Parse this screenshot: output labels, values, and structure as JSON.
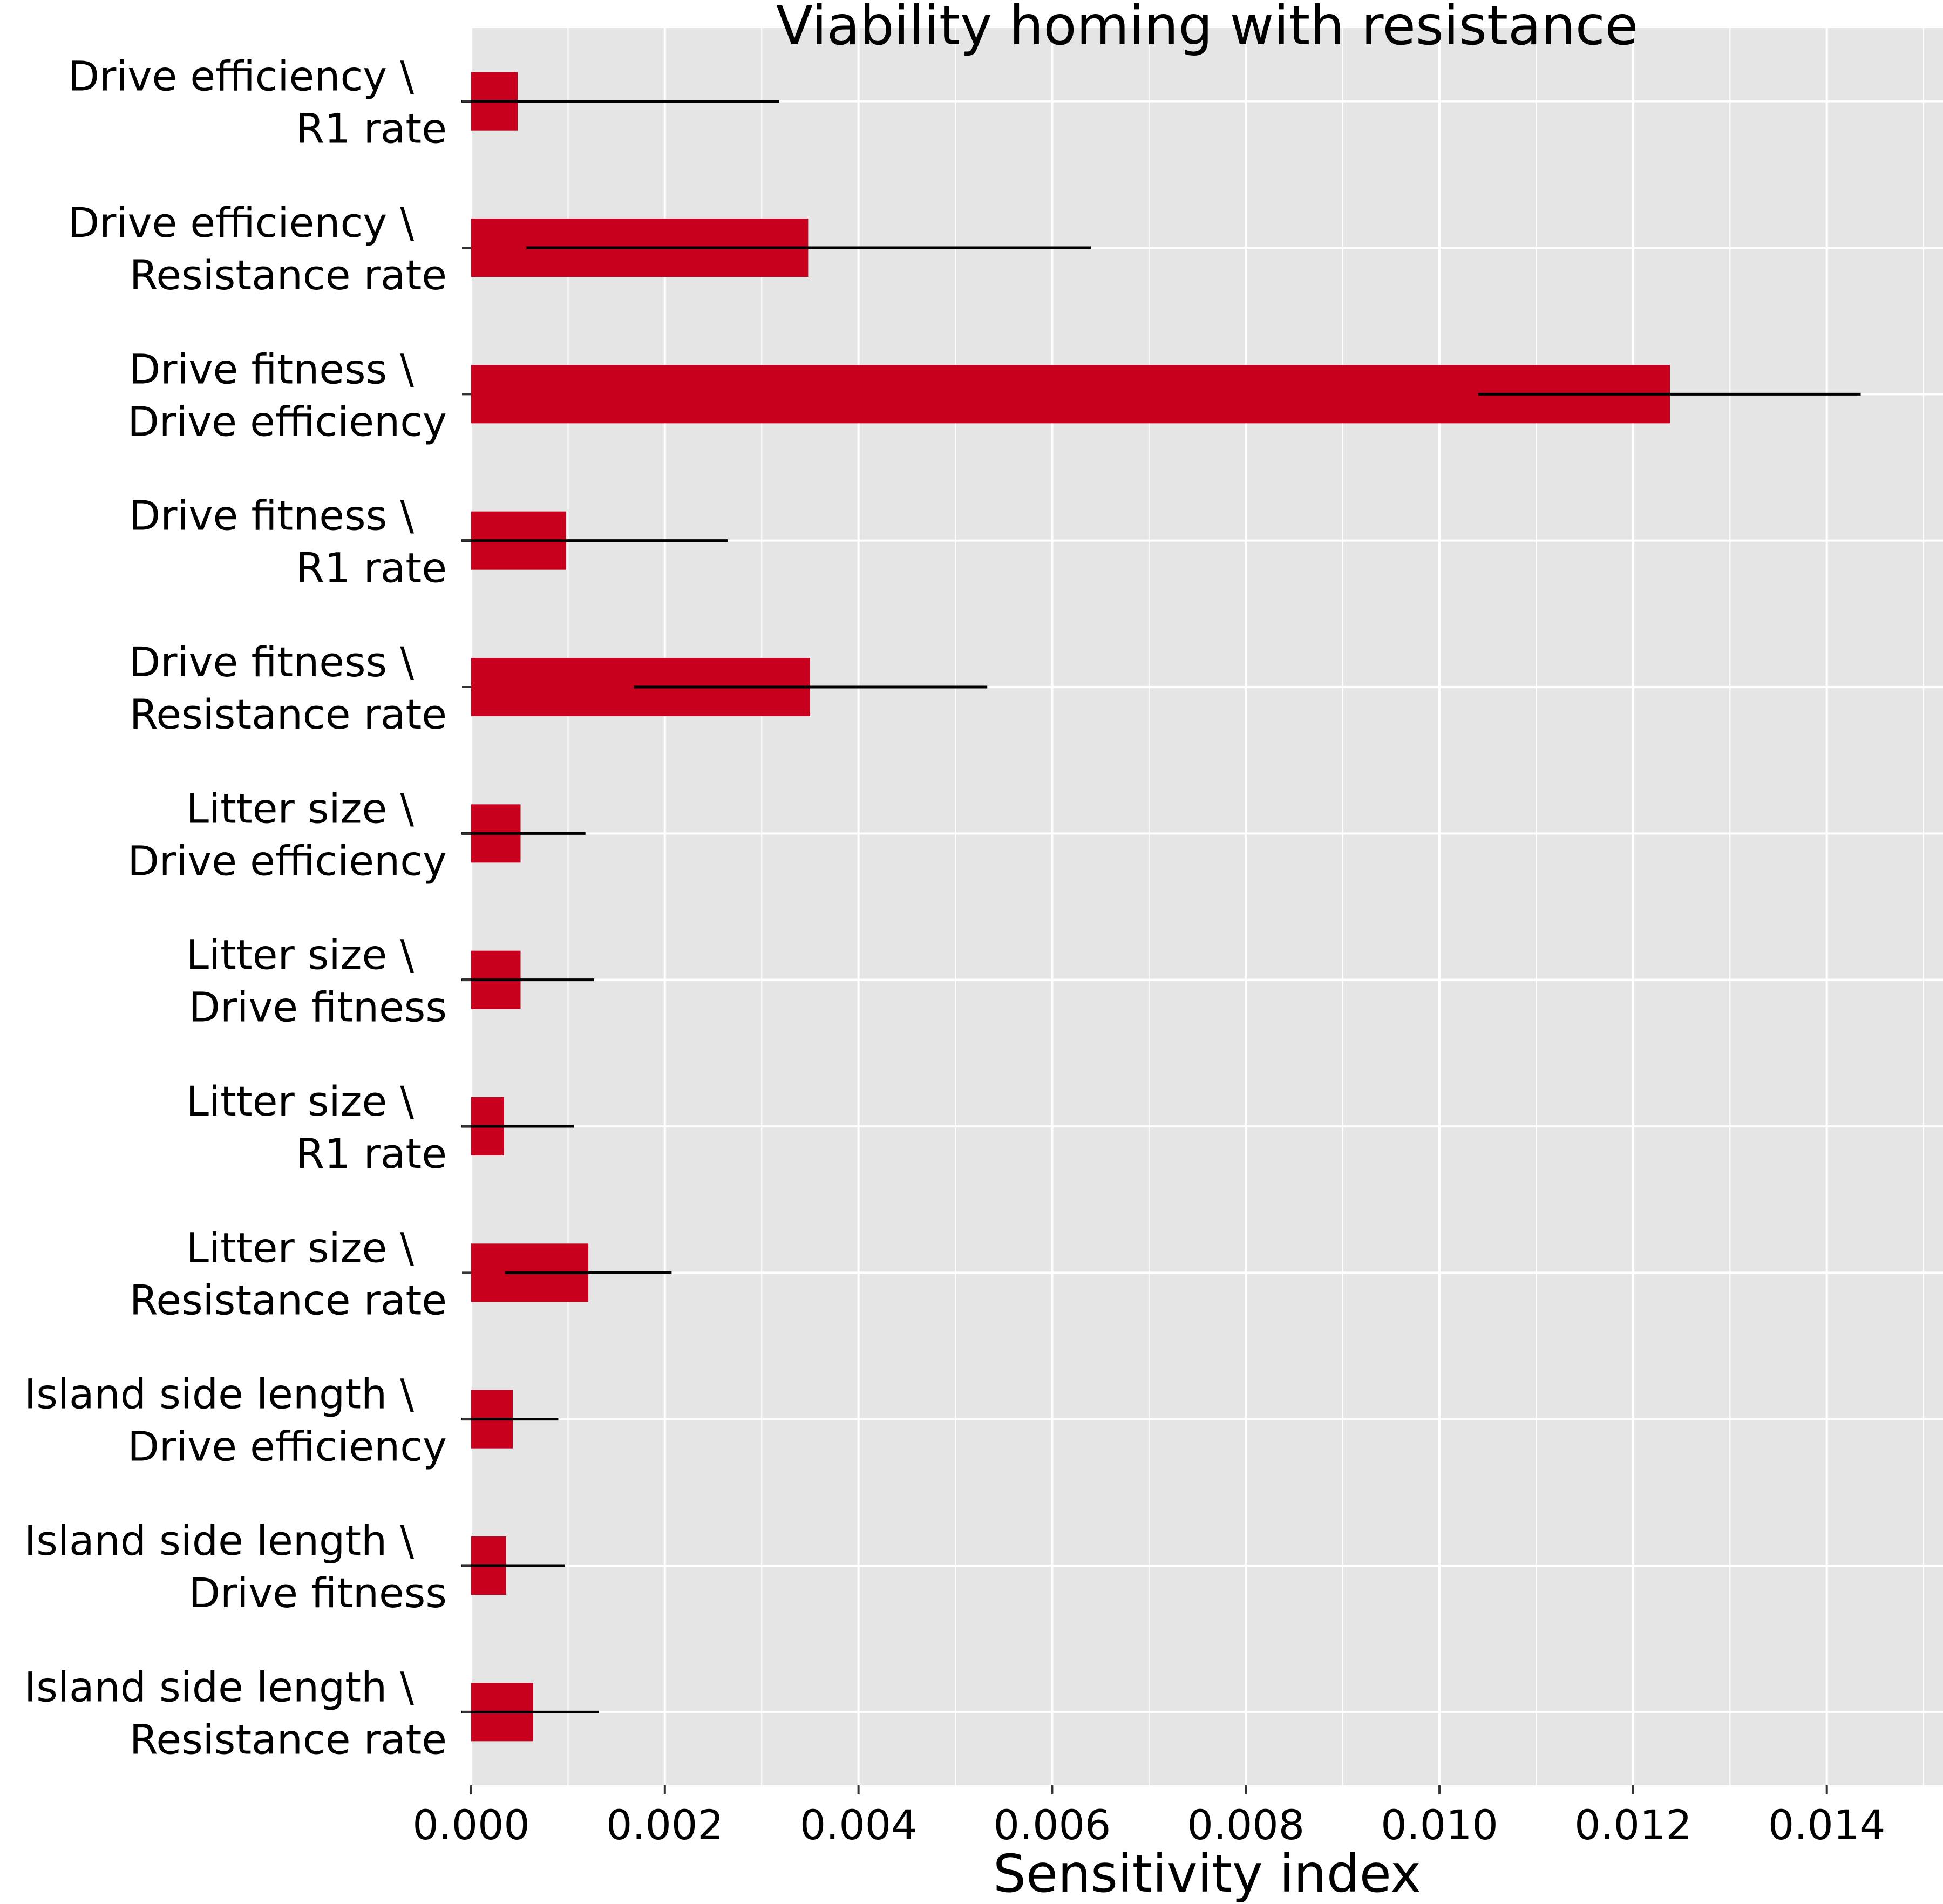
{
  "chart_data": {
    "type": "bar",
    "orientation": "horizontal",
    "title": "Viability homing with resistance",
    "xlabel": "Sensitivity index",
    "ylabel": "",
    "xlim": [
      0,
      0.0152
    ],
    "xticks": [
      0,
      0.002,
      0.004,
      0.006,
      0.008,
      0.01,
      0.012,
      0.014
    ],
    "xtick_labels": [
      "0.000",
      "0.002",
      "0.004",
      "0.006",
      "0.008",
      "0.010",
      "0.012",
      "0.014"
    ],
    "grid": true,
    "colors": {
      "bar": "#c8001e",
      "panel": "#e5e5e5",
      "gridline": "#ffffff",
      "errorbar": "#000000"
    },
    "categories": [
      [
        "Drive efficiency \\",
        "R1 rate"
      ],
      [
        "Drive efficiency \\",
        "Resistance rate"
      ],
      [
        "Drive fitness \\",
        "Drive efficiency"
      ],
      [
        "Drive fitness \\",
        "R1 rate"
      ],
      [
        "Drive fitness \\",
        "Resistance rate"
      ],
      [
        "Litter size \\",
        "Drive efficiency"
      ],
      [
        "Litter size \\",
        "Drive fitness"
      ],
      [
        "Litter size \\",
        "R1 rate"
      ],
      [
        "Litter size \\",
        "Resistance rate"
      ],
      [
        "Island side length \\",
        "Drive efficiency"
      ],
      [
        "Island side length \\",
        "Drive fitness"
      ],
      [
        "Island side length \\",
        "Resistance rate"
      ]
    ],
    "values": [
      0.00048,
      0.00348,
      0.01238,
      0.00098,
      0.0035,
      0.00051,
      0.00051,
      0.00034,
      0.00121,
      0.00043,
      0.00036,
      0.00064
    ],
    "err_low": [
      -0.0001,
      0.00057,
      0.0104,
      -0.0001,
      0.00168,
      -0.0001,
      -0.0001,
      -0.0001,
      0.00035,
      -0.0001,
      -0.0001,
      -0.0001
    ],
    "err_high": [
      0.00318,
      0.0064,
      0.01435,
      0.00265,
      0.00533,
      0.00118,
      0.00127,
      0.00106,
      0.00207,
      0.0009,
      0.00097,
      0.00132
    ]
  }
}
